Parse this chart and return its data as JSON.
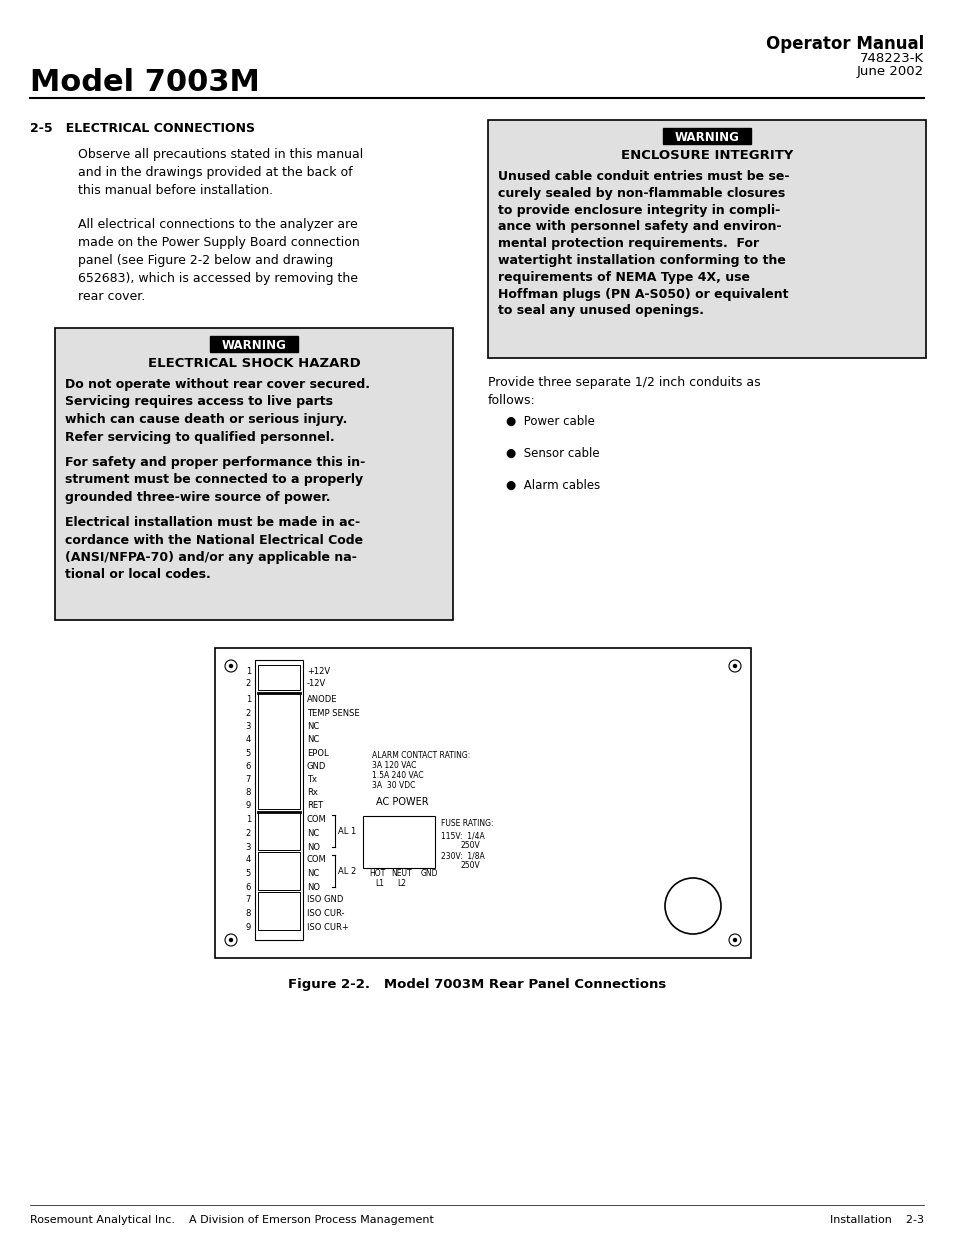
{
  "page_bg": "#ffffff",
  "header_model": "Model 7003M",
  "header_title": "Operator Manual",
  "header_sub1": "748223-K",
  "header_sub2": "June 2002",
  "section_title": "2-5   ELECTRICAL CONNECTIONS",
  "para1": "Observe all precautions stated in this manual\nand in the drawings provided at the back of\nthis manual before installation.",
  "para2": "All electrical connections to the analyzer are\nmade on the Power Supply Board connection\npanel (see Figure 2-2 below and drawing\n652683), which is accessed by removing the\nrear cover.",
  "warn1_title": "ELECTRICAL SHOCK HAZARD",
  "warn1_p1": "Do not operate without rear cover secured.\nServicing requires access to live parts\nwhich can cause death or serious injury.\nRefer servicing to qualified personnel.",
  "warn1_p2": "For safety and proper performance this in-\nstrument must be connected to a properly\ngrounded three-wire source of power.",
  "warn1_p3": "Electrical installation must be made in ac-\ncordance with the National Electrical Code\n(ANSI/NFPA-70) and/or any applicable na-\ntional or local codes.",
  "warn2_title": "ENCLOSURE INTEGRITY",
  "warn2_body": "Unused cable conduit entries must be se-\ncurely sealed by non-flammable closures\nto provide enclosure integrity in compli-\nance with personnel safety and environ-\nmental protection requirements.  For\nwatertight installation conforming to the\nrequirements of NEMA Type 4X, use\nHoffman plugs (PN A-S050) or equivalent\nto seal any unused openings.",
  "right_para": "Provide three separate 1/2 inch conduits as\nfollows:",
  "bullet1": "Power cable",
  "bullet2": "Sensor cable",
  "bullet3": "Alarm cables",
  "fig_caption": "Figure 2-2.   Model 7003M Rear Panel Connections",
  "footer_left": "Rosemount Analytical Inc.    A Division of Emerson Process Management",
  "footer_right": "Installation    2-3"
}
